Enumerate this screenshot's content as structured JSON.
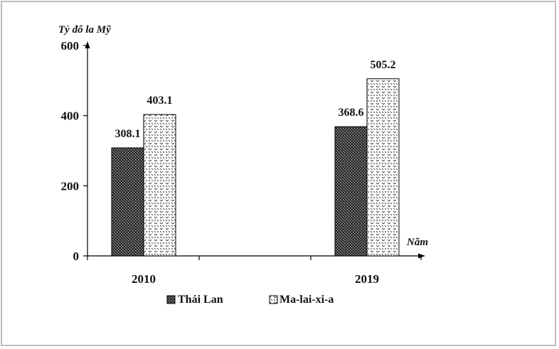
{
  "chart_data": {
    "type": "bar",
    "categories": [
      "2010",
      "2019"
    ],
    "series": [
      {
        "name": "Thái Lan",
        "values": [
          308.1,
          368.6
        ],
        "pattern": "dark-crosshatch",
        "color": "#3a3a3a"
      },
      {
        "name": "Ma-lai-xi-a",
        "values": [
          403.1,
          505.2
        ],
        "pattern": "light-dots",
        "color": "#ffffff"
      }
    ],
    "value_labels": [
      [
        "308.1",
        "368.6"
      ],
      [
        "403.1",
        "505.2"
      ]
    ],
    "ylabel": "Tỷ đô la Mỹ",
    "xlabel": "Năm",
    "yticks": [
      "0",
      "200",
      "400",
      "600"
    ],
    "ylim": [
      0,
      600
    ],
    "grid": false,
    "legend": "bottom"
  }
}
